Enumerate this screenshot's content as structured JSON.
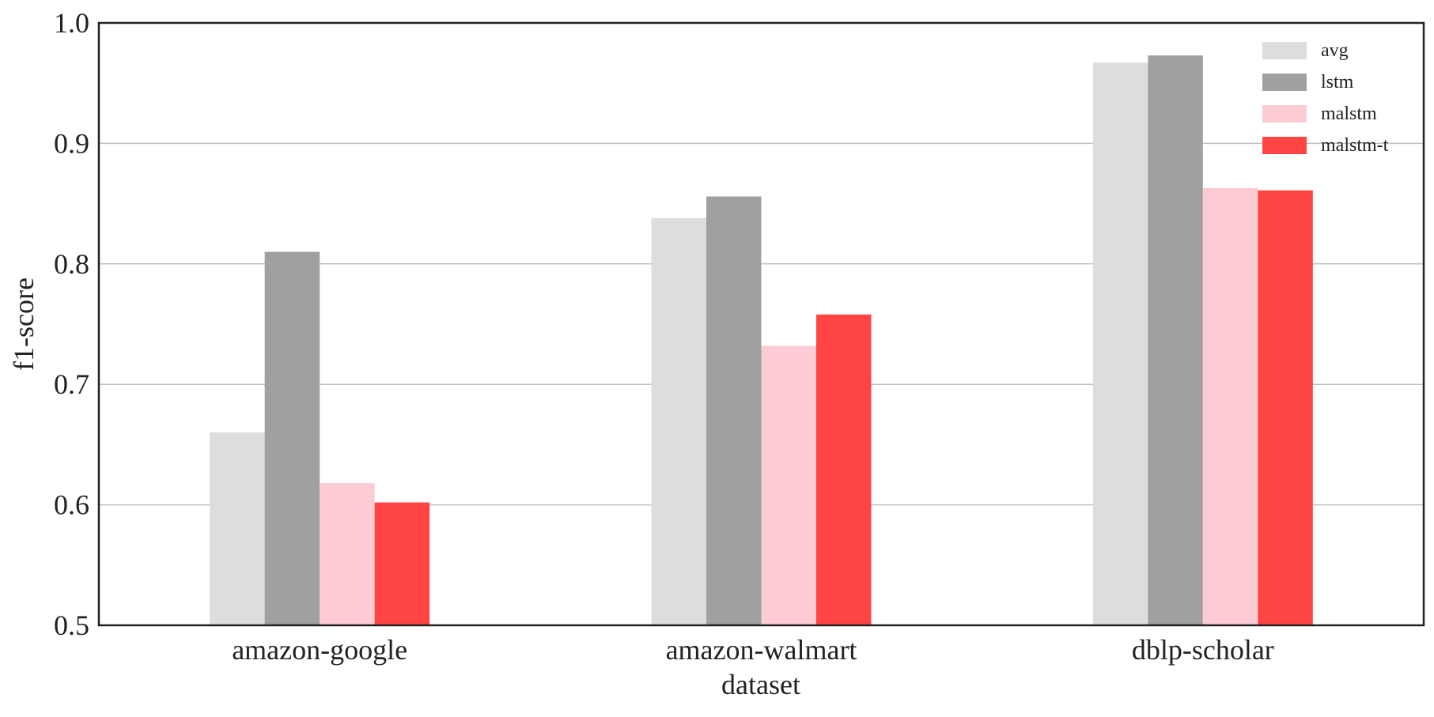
{
  "chart_data": {
    "type": "bar",
    "title": "",
    "xlabel": "dataset",
    "ylabel": "f1-score",
    "categories": [
      "amazon-google",
      "amazon-walmart",
      "dblp-scholar"
    ],
    "series": [
      {
        "name": "avg",
        "color": "#dddddd",
        "values": [
          0.66,
          0.838,
          0.967
        ]
      },
      {
        "name": "lstm",
        "color": "#a0a0a0",
        "values": [
          0.81,
          0.856,
          0.973
        ]
      },
      {
        "name": "malstm",
        "color": "#fccbd4",
        "values": [
          0.618,
          0.732,
          0.863
        ]
      },
      {
        "name": "malstm-t",
        "color": "#ff4444",
        "values": [
          0.602,
          0.758,
          0.861
        ]
      }
    ],
    "ylim": [
      0.5,
      1.0
    ],
    "yticks": [
      "0.5",
      "0.6",
      "0.7",
      "0.8",
      "0.9",
      "1.0"
    ],
    "grid": "horizontal",
    "legend_position": "top-right"
  }
}
